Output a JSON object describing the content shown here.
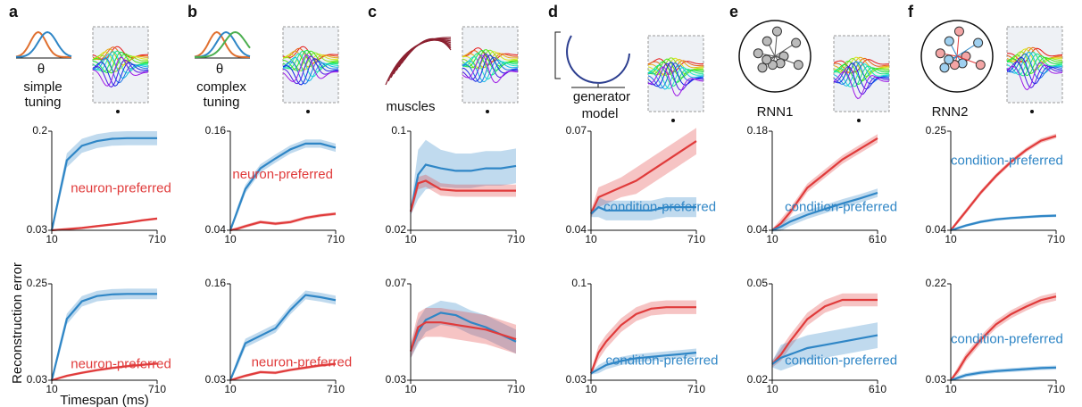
{
  "panels": [
    {
      "letter": "a",
      "caption": [
        "θ",
        "simple",
        "tuning"
      ]
    },
    {
      "letter": "b",
      "caption": [
        "θ",
        "complex",
        "tuning"
      ]
    },
    {
      "letter": "c",
      "caption": [
        "muscles"
      ]
    },
    {
      "letter": "d",
      "caption": [
        "generator",
        "model"
      ]
    },
    {
      "letter": "e",
      "caption": [
        "RNN1"
      ]
    },
    {
      "letter": "f",
      "caption": [
        "RNN2"
      ]
    }
  ],
  "chart_data": [
    {
      "type": "line",
      "x": [
        10,
        60,
        110,
        210,
        310,
        410,
        510,
        610,
        710
      ],
      "xlim": [
        10,
        710
      ],
      "xticks": [
        10,
        710
      ],
      "ylim": [
        0.03,
        0.2
      ],
      "yticks": [
        0.03,
        0.2
      ],
      "series": [
        {
          "color": "#2f86c6",
          "values": [
            0.03,
            0.09,
            0.15,
            0.175,
            0.183,
            0.187,
            0.188,
            0.188,
            0.188
          ],
          "spread": [
            0.002,
            0.01,
            0.012,
            0.012,
            0.012,
            0.012,
            0.012,
            0.012,
            0.012
          ]
        },
        {
          "name": "neuron-preferred",
          "color": "#e03b3b",
          "values": [
            0.03,
            0.031,
            0.032,
            0.034,
            0.037,
            0.04,
            0.043,
            0.047,
            0.05
          ],
          "spread": [
            0.001,
            0.002,
            0.002,
            0.002,
            0.002,
            0.002,
            0.002,
            0.002,
            0.002
          ]
        }
      ]
    },
    {
      "type": "line",
      "x": [
        10,
        60,
        110,
        210,
        310,
        410,
        510,
        610,
        710
      ],
      "xlim": [
        10,
        710
      ],
      "xticks": [
        10,
        710
      ],
      "ylim": [
        0.04,
        0.16
      ],
      "yticks": [
        0.04,
        0.16
      ],
      "series": [
        {
          "color": "#2f86c6",
          "values": [
            0.04,
            0.065,
            0.09,
            0.115,
            0.127,
            0.138,
            0.145,
            0.145,
            0.14
          ],
          "spread": [
            0.001,
            0.005,
            0.005,
            0.005,
            0.005,
            0.005,
            0.005,
            0.005,
            0.005
          ]
        },
        {
          "name": "neuron-preferred",
          "color": "#e03b3b",
          "values": [
            0.04,
            0.042,
            0.045,
            0.05,
            0.048,
            0.05,
            0.055,
            0.058,
            0.06
          ],
          "spread": [
            0.001,
            0.002,
            0.002,
            0.002,
            0.002,
            0.002,
            0.002,
            0.002,
            0.002
          ]
        }
      ]
    },
    {
      "type": "line",
      "x": [
        10,
        60,
        110,
        210,
        310,
        410,
        510,
        610,
        710
      ],
      "xlim": [
        10,
        710
      ],
      "xticks": [
        10,
        710
      ],
      "ylim": [
        0.02,
        0.1
      ],
      "yticks": [
        0.02,
        0.1
      ],
      "series": [
        {
          "color": "#2f86c6",
          "values": [
            0.035,
            0.065,
            0.073,
            0.07,
            0.068,
            0.068,
            0.07,
            0.07,
            0.072
          ],
          "spread": [
            0.003,
            0.02,
            0.02,
            0.015,
            0.014,
            0.014,
            0.014,
            0.014,
            0.014
          ]
        },
        {
          "color": "#e03b3b",
          "values": [
            0.035,
            0.058,
            0.06,
            0.053,
            0.052,
            0.052,
            0.052,
            0.052,
            0.052
          ],
          "spread": [
            0.003,
            0.005,
            0.005,
            0.005,
            0.005,
            0.005,
            0.005,
            0.005,
            0.005
          ]
        }
      ]
    },
    {
      "type": "line",
      "x": [
        10,
        60,
        110,
        210,
        310,
        410,
        510,
        610,
        710
      ],
      "xlim": [
        10,
        710
      ],
      "xticks": [
        10,
        710
      ],
      "ylim": [
        0.04,
        0.07
      ],
      "yticks": [
        0.04,
        0.07
      ],
      "series": [
        {
          "color": "#e03b3b",
          "values": [
            0.045,
            0.05,
            0.051,
            0.053,
            0.055,
            0.058,
            0.061,
            0.064,
            0.067
          ],
          "spread": [
            0.001,
            0.003,
            0.003,
            0.003,
            0.004,
            0.004,
            0.004,
            0.004,
            0.004
          ]
        },
        {
          "name": "condition-preferred",
          "color": "#2f86c6",
          "values": [
            0.045,
            0.047,
            0.046,
            0.046,
            0.046,
            0.046,
            0.047,
            0.047,
            0.047
          ],
          "spread": [
            0.001,
            0.003,
            0.003,
            0.003,
            0.003,
            0.003,
            0.003,
            0.003,
            0.003
          ]
        }
      ]
    },
    {
      "type": "line",
      "x": [
        10,
        60,
        110,
        210,
        310,
        410,
        510,
        610
      ],
      "xlim": [
        10,
        610
      ],
      "xticks": [
        10,
        610
      ],
      "ylim": [
        0.04,
        0.18
      ],
      "yticks": [
        0.04,
        0.18
      ],
      "series": [
        {
          "color": "#e03b3b",
          "values": [
            0.04,
            0.05,
            0.065,
            0.1,
            0.12,
            0.14,
            0.155,
            0.17
          ],
          "spread": [
            0.002,
            0.006,
            0.006,
            0.006,
            0.006,
            0.006,
            0.006,
            0.006
          ]
        },
        {
          "name": "condition-preferred",
          "color": "#2f86c6",
          "values": [
            0.04,
            0.045,
            0.052,
            0.062,
            0.07,
            0.078,
            0.085,
            0.093
          ],
          "spread": [
            0.002,
            0.006,
            0.006,
            0.006,
            0.006,
            0.006,
            0.006,
            0.006
          ]
        }
      ]
    },
    {
      "type": "line",
      "x": [
        10,
        60,
        110,
        210,
        310,
        410,
        510,
        610,
        710
      ],
      "xlim": [
        10,
        710
      ],
      "xticks": [
        10,
        710
      ],
      "ylim": [
        0.04,
        0.25
      ],
      "yticks": [
        0.04,
        0.25
      ],
      "series": [
        {
          "color": "#e03b3b",
          "values": [
            0.04,
            0.06,
            0.08,
            0.12,
            0.155,
            0.185,
            0.21,
            0.23,
            0.24
          ],
          "spread": [
            0.002,
            0.005,
            0.005,
            0.005,
            0.005,
            0.005,
            0.005,
            0.005,
            0.005
          ]
        },
        {
          "name": "condition-preferred",
          "color": "#2f86c6",
          "values": [
            0.04,
            0.045,
            0.05,
            0.058,
            0.063,
            0.066,
            0.068,
            0.07,
            0.071
          ],
          "spread": [
            0.001,
            0.003,
            0.003,
            0.003,
            0.003,
            0.003,
            0.003,
            0.003,
            0.003
          ]
        }
      ]
    },
    {
      "type": "line",
      "x": [
        10,
        60,
        110,
        210,
        310,
        410,
        510,
        610,
        710
      ],
      "xlim": [
        10,
        710
      ],
      "xticks": [
        10,
        710
      ],
      "ylim": [
        0.03,
        0.25
      ],
      "yticks": [
        0.03,
        0.25
      ],
      "ylabel": "Reconstruction error",
      "xlabel": "Timespan (ms)",
      "series": [
        {
          "color": "#2f86c6",
          "values": [
            0.03,
            0.1,
            0.17,
            0.21,
            0.222,
            0.226,
            0.227,
            0.227,
            0.227
          ],
          "spread": [
            0.002,
            0.012,
            0.012,
            0.012,
            0.012,
            0.012,
            0.012,
            0.012,
            0.012
          ]
        },
        {
          "name": "neuron-preferred",
          "color": "#e03b3b",
          "values": [
            0.03,
            0.035,
            0.04,
            0.047,
            0.053,
            0.058,
            0.062,
            0.065,
            0.068
          ],
          "spread": [
            0.001,
            0.003,
            0.003,
            0.003,
            0.003,
            0.003,
            0.003,
            0.003,
            0.003
          ]
        }
      ]
    },
    {
      "type": "line",
      "x": [
        10,
        60,
        110,
        210,
        310,
        410,
        510,
        610,
        710
      ],
      "xlim": [
        10,
        710
      ],
      "xticks": [
        10,
        710
      ],
      "ylim": [
        0.03,
        0.16
      ],
      "yticks": [
        0.03,
        0.16
      ],
      "series": [
        {
          "color": "#2f86c6",
          "values": [
            0.03,
            0.055,
            0.08,
            0.09,
            0.1,
            0.125,
            0.145,
            0.142,
            0.138
          ],
          "spread": [
            0.001,
            0.006,
            0.006,
            0.006,
            0.006,
            0.006,
            0.006,
            0.006,
            0.006
          ]
        },
        {
          "name": "neuron-preferred",
          "color": "#e03b3b",
          "values": [
            0.03,
            0.033,
            0.036,
            0.041,
            0.04,
            0.044,
            0.047,
            0.05,
            0.052
          ],
          "spread": [
            0.001,
            0.002,
            0.002,
            0.002,
            0.002,
            0.002,
            0.002,
            0.002,
            0.002
          ]
        }
      ]
    },
    {
      "type": "line",
      "x": [
        10,
        60,
        110,
        210,
        310,
        410,
        510,
        610,
        710
      ],
      "xlim": [
        10,
        710
      ],
      "xticks": [
        10,
        710
      ],
      "ylim": [
        0.03,
        0.07
      ],
      "yticks": [
        0.03,
        0.07
      ],
      "series": [
        {
          "color": "#2f86c6",
          "values": [
            0.042,
            0.05,
            0.055,
            0.058,
            0.057,
            0.054,
            0.052,
            0.049,
            0.046
          ],
          "spread": [
            0.003,
            0.005,
            0.005,
            0.005,
            0.005,
            0.005,
            0.005,
            0.005,
            0.005
          ]
        },
        {
          "color": "#e03b3b",
          "values": [
            0.042,
            0.052,
            0.054,
            0.054,
            0.053,
            0.052,
            0.051,
            0.049,
            0.047
          ],
          "spread": [
            0.003,
            0.006,
            0.006,
            0.006,
            0.006,
            0.006,
            0.006,
            0.006,
            0.006
          ]
        }
      ]
    },
    {
      "type": "line",
      "x": [
        10,
        60,
        110,
        210,
        310,
        410,
        510,
        610,
        710
      ],
      "xlim": [
        10,
        710
      ],
      "xticks": [
        10,
        710
      ],
      "ylim": [
        0.03,
        0.1
      ],
      "yticks": [
        0.03,
        0.1
      ],
      "series": [
        {
          "color": "#e03b3b",
          "values": [
            0.035,
            0.05,
            0.058,
            0.07,
            0.078,
            0.082,
            0.083,
            0.083,
            0.083
          ],
          "spread": [
            0.002,
            0.005,
            0.005,
            0.005,
            0.005,
            0.005,
            0.005,
            0.005,
            0.005
          ]
        },
        {
          "name": "condition-preferred",
          "color": "#2f86c6",
          "values": [
            0.035,
            0.038,
            0.041,
            0.044,
            0.046,
            0.047,
            0.048,
            0.049,
            0.05
          ],
          "spread": [
            0.001,
            0.003,
            0.003,
            0.003,
            0.003,
            0.003,
            0.003,
            0.003,
            0.003
          ]
        }
      ]
    },
    {
      "type": "line",
      "x": [
        10,
        60,
        110,
        210,
        310,
        410,
        510,
        610
      ],
      "xlim": [
        10,
        610
      ],
      "xticks": [
        10,
        610
      ],
      "ylim": [
        0.02,
        0.05
      ],
      "yticks": [
        0.02,
        0.05
      ],
      "series": [
        {
          "color": "#e03b3b",
          "values": [
            0.025,
            0.028,
            0.032,
            0.039,
            0.043,
            0.045,
            0.045,
            0.045
          ],
          "spread": [
            0.001,
            0.002,
            0.002,
            0.002,
            0.002,
            0.002,
            0.002,
            0.002
          ]
        },
        {
          "name": "condition-preferred",
          "color": "#2f86c6",
          "values": [
            0.025,
            0.027,
            0.028,
            0.03,
            0.031,
            0.032,
            0.033,
            0.034
          ],
          "spread": [
            0.001,
            0.004,
            0.004,
            0.004,
            0.004,
            0.004,
            0.004,
            0.004
          ]
        }
      ]
    },
    {
      "type": "line",
      "x": [
        10,
        60,
        110,
        210,
        310,
        410,
        510,
        610,
        710
      ],
      "xlim": [
        10,
        710
      ],
      "xticks": [
        10,
        710
      ],
      "ylim": [
        0.03,
        0.22
      ],
      "yticks": [
        0.03,
        0.22
      ],
      "series": [
        {
          "color": "#e03b3b",
          "values": [
            0.03,
            0.05,
            0.075,
            0.11,
            0.14,
            0.16,
            0.175,
            0.188,
            0.195
          ],
          "spread": [
            0.002,
            0.008,
            0.008,
            0.008,
            0.008,
            0.008,
            0.008,
            0.008,
            0.008
          ]
        },
        {
          "name": "condition-preferred",
          "color": "#2f86c6",
          "values": [
            0.03,
            0.035,
            0.04,
            0.045,
            0.048,
            0.05,
            0.052,
            0.054,
            0.055
          ],
          "spread": [
            0.001,
            0.004,
            0.004,
            0.004,
            0.004,
            0.004,
            0.004,
            0.004,
            0.004
          ]
        }
      ]
    }
  ]
}
